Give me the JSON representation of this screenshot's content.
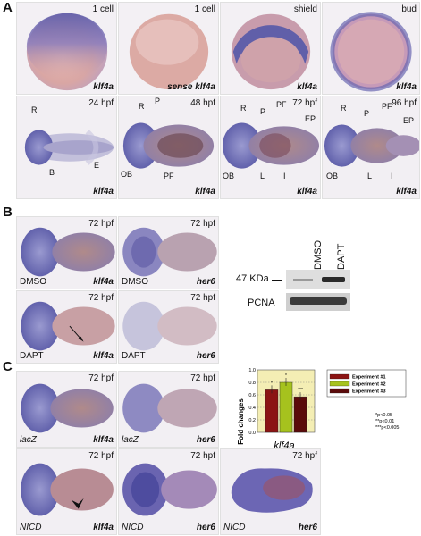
{
  "panels": {
    "A": "A",
    "B": "B",
    "C": "C"
  },
  "A_row1": [
    {
      "stage": "1 cell",
      "probe": "klf4a"
    },
    {
      "stage": "1 cell",
      "probe": "sense klf4a"
    },
    {
      "stage": "shield",
      "probe": "klf4a"
    },
    {
      "stage": "bud",
      "probe": "klf4a"
    }
  ],
  "A_row2": [
    {
      "stage": "24 hpf",
      "probe": "klf4a",
      "marks": [
        "R",
        "B",
        "E"
      ]
    },
    {
      "stage": "48 hpf",
      "probe": "klf4a",
      "marks": [
        "R",
        "P",
        "OB",
        "PF"
      ]
    },
    {
      "stage": "72 hpf",
      "probe": "klf4a",
      "marks": [
        "R",
        "P",
        "PF",
        "EP",
        "OB",
        "L",
        "I"
      ]
    },
    {
      "stage": "96 hpf",
      "probe": "klf4a",
      "marks": [
        "R",
        "P",
        "PF",
        "EP",
        "OB",
        "L",
        "I"
      ]
    }
  ],
  "B_tiles": [
    {
      "stage": "72 hpf",
      "treatment": "DMSO",
      "probe": "klf4a"
    },
    {
      "stage": "72 hpf",
      "treatment": "DMSO",
      "probe": "her6"
    },
    {
      "stage": "72 hpf",
      "treatment": "DAPT",
      "probe": "klf4a"
    },
    {
      "stage": "72 hpf",
      "treatment": "DAPT",
      "probe": "her6"
    }
  ],
  "western": {
    "lanes": [
      "DMSO",
      "DAPT"
    ],
    "band1": "47 KDa",
    "band2": "PCNA"
  },
  "C_tiles": [
    {
      "stage": "72 hpf",
      "treatment": "lacZ",
      "probe": "klf4a"
    },
    {
      "stage": "72 hpf",
      "treatment": "lacZ",
      "probe": "her6"
    },
    {
      "stage": "72 hpf",
      "treatment": "NICD",
      "probe": "klf4a"
    },
    {
      "stage": "72 hpf",
      "treatment": "NICD",
      "probe": "her6"
    },
    {
      "stage": "72 hpf",
      "treatment": "NICD",
      "probe": "her6"
    }
  ],
  "chart_data": {
    "type": "bar",
    "categories": [
      "Experiment #1",
      "Experiment #2",
      "Experiment #3"
    ],
    "values": [
      0.68,
      0.8,
      0.57
    ],
    "colors": [
      "#8b1414",
      "#a6c21e",
      "#5a0a0a"
    ],
    "significance": [
      "*",
      "*",
      "***"
    ],
    "ylabel": "Fold changes",
    "xlabel": "klf4a",
    "ylim": [
      0,
      1.0
    ],
    "yticks": [
      0,
      0.2,
      0.4,
      0.6,
      0.8,
      1.0
    ],
    "legend": [
      "Experiment #1",
      "Experiment #2",
      "Experiment #3"
    ],
    "legend_position": "right",
    "notes": [
      "*p<0.05",
      "**p<0.01",
      "***p<0.005"
    ],
    "background": "#f4eeb4",
    "grid": true
  }
}
